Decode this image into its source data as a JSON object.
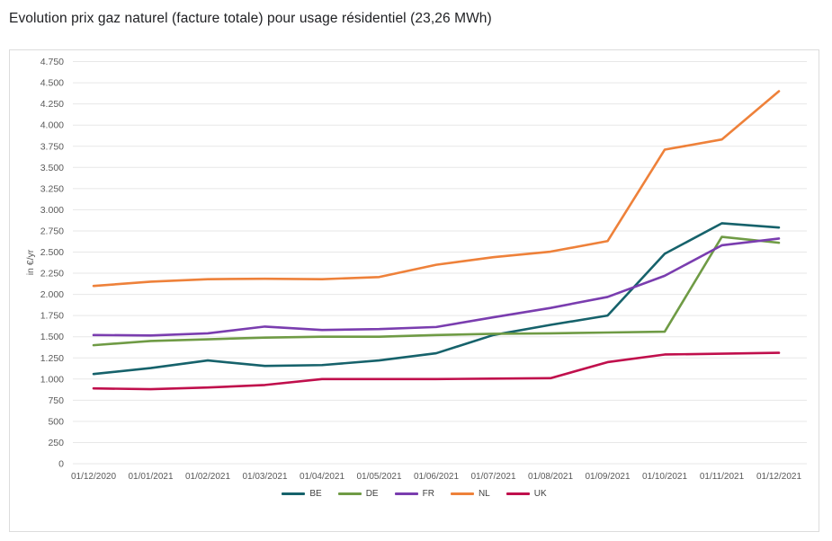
{
  "page": {
    "title": "Evolution prix gaz naturel (facture totale) pour usage résidentiel (23,26 MWh)"
  },
  "chart_data": {
    "type": "line",
    "title": "Evolution prix gaz naturel (facture totale) pour usage résidentiel (23,26 MWh)",
    "xlabel": "",
    "ylabel": "in €/yr",
    "ylim": [
      0,
      4750
    ],
    "ytick_step": 250,
    "ytick_labels": [
      "0",
      "250",
      "500",
      "750",
      "1.000",
      "1.250",
      "1.500",
      "1.750",
      "2.000",
      "2.250",
      "2.500",
      "2.750",
      "3.000",
      "3.250",
      "3.500",
      "3.750",
      "4.000",
      "4.250",
      "4.500",
      "4.750"
    ],
    "grid": "horizontal",
    "legend_position": "bottom-center",
    "categories": [
      "01/12/2020",
      "01/01/2021",
      "01/02/2021",
      "01/03/2021",
      "01/04/2021",
      "01/05/2021",
      "01/06/2021",
      "01/07/2021",
      "01/08/2021",
      "01/09/2021",
      "01/10/2021",
      "01/11/2021",
      "01/12/2021"
    ],
    "series": [
      {
        "name": "BE",
        "color": "#16626b",
        "values": [
          1060,
          1130,
          1220,
          1155,
          1165,
          1220,
          1305,
          1520,
          1640,
          1750,
          2480,
          2840,
          2790
        ]
      },
      {
        "name": "DE",
        "color": "#6f9b45",
        "values": [
          1400,
          1450,
          1470,
          1490,
          1500,
          1500,
          1520,
          1535,
          1540,
          1550,
          1560,
          2680,
          2610
        ]
      },
      {
        "name": "FR",
        "color": "#7a3daf",
        "values": [
          1520,
          1515,
          1540,
          1620,
          1580,
          1590,
          1615,
          1730,
          1840,
          1970,
          2220,
          2580,
          2660
        ]
      },
      {
        "name": "NL",
        "color": "#ee813a",
        "values": [
          2100,
          2150,
          2180,
          2185,
          2180,
          2205,
          2350,
          2440,
          2505,
          2630,
          3710,
          3830,
          4400
        ]
      },
      {
        "name": "UK",
        "color": "#c00f4c",
        "values": [
          890,
          880,
          900,
          930,
          1000,
          1000,
          1000,
          1005,
          1010,
          1200,
          1290,
          1300,
          1310
        ]
      }
    ],
    "colors": {
      "grid": "#e7e7e7",
      "axis_text": "#595959",
      "panel_border": "#dcdcdc"
    }
  }
}
